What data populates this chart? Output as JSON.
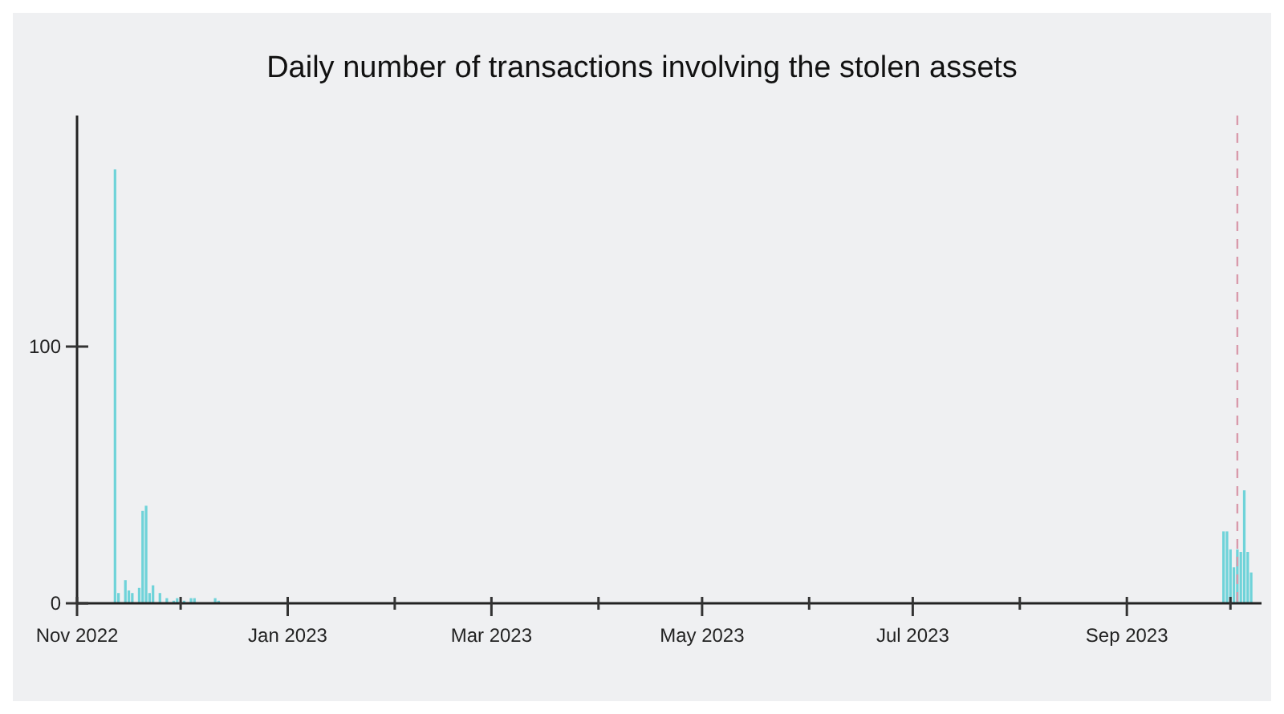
{
  "chart_data": {
    "type": "bar",
    "title": "Daily number of transactions involving the stolen assets",
    "x": [
      "2022-11-12",
      "2022-11-13",
      "2022-11-15",
      "2022-11-16",
      "2022-11-17",
      "2022-11-19",
      "2022-11-20",
      "2022-11-21",
      "2022-11-22",
      "2022-11-23",
      "2022-11-25",
      "2022-11-27",
      "2022-11-29",
      "2022-11-30",
      "2022-12-02",
      "2022-12-04",
      "2022-12-05",
      "2022-12-11",
      "2022-12-12",
      "2023-09-29",
      "2023-09-30",
      "2023-10-01",
      "2023-10-02",
      "2023-10-03",
      "2023-10-04",
      "2023-10-05",
      "2023-10-06",
      "2023-10-07"
    ],
    "values": [
      169,
      4,
      9,
      5,
      4,
      6,
      36,
      38,
      4,
      7,
      4,
      2,
      1,
      2,
      1,
      2,
      2,
      2,
      1,
      28,
      28,
      21,
      14,
      21,
      20,
      44,
      20,
      12
    ],
    "color": "#6fd3d9",
    "xlim": [
      "2022-11-01",
      "2023-10-10"
    ],
    "xticks": [
      {
        "value": "2022-11-01",
        "label": "Nov 2022"
      },
      {
        "value": "2022-12-01",
        "label": null
      },
      {
        "value": "2023-01-01",
        "label": "Jan 2023"
      },
      {
        "value": "2023-02-01",
        "label": null
      },
      {
        "value": "2023-03-01",
        "label": "Mar 2023"
      },
      {
        "value": "2023-04-01",
        "label": null
      },
      {
        "value": "2023-05-01",
        "label": "May 2023"
      },
      {
        "value": "2023-06-01",
        "label": null
      },
      {
        "value": "2023-07-01",
        "label": "Jul 2023"
      },
      {
        "value": "2023-08-01",
        "label": null
      },
      {
        "value": "2023-09-01",
        "label": "Sep 2023"
      },
      {
        "value": "2023-10-01",
        "label": null
      }
    ],
    "ylim": [
      0,
      190
    ],
    "yticks": [
      0,
      100
    ],
    "grid": false,
    "ref_lines": [
      {
        "axis": "x",
        "value": "2023-10-03",
        "label": null,
        "color": "#d99aab",
        "line_style": "dashed"
      }
    ]
  }
}
